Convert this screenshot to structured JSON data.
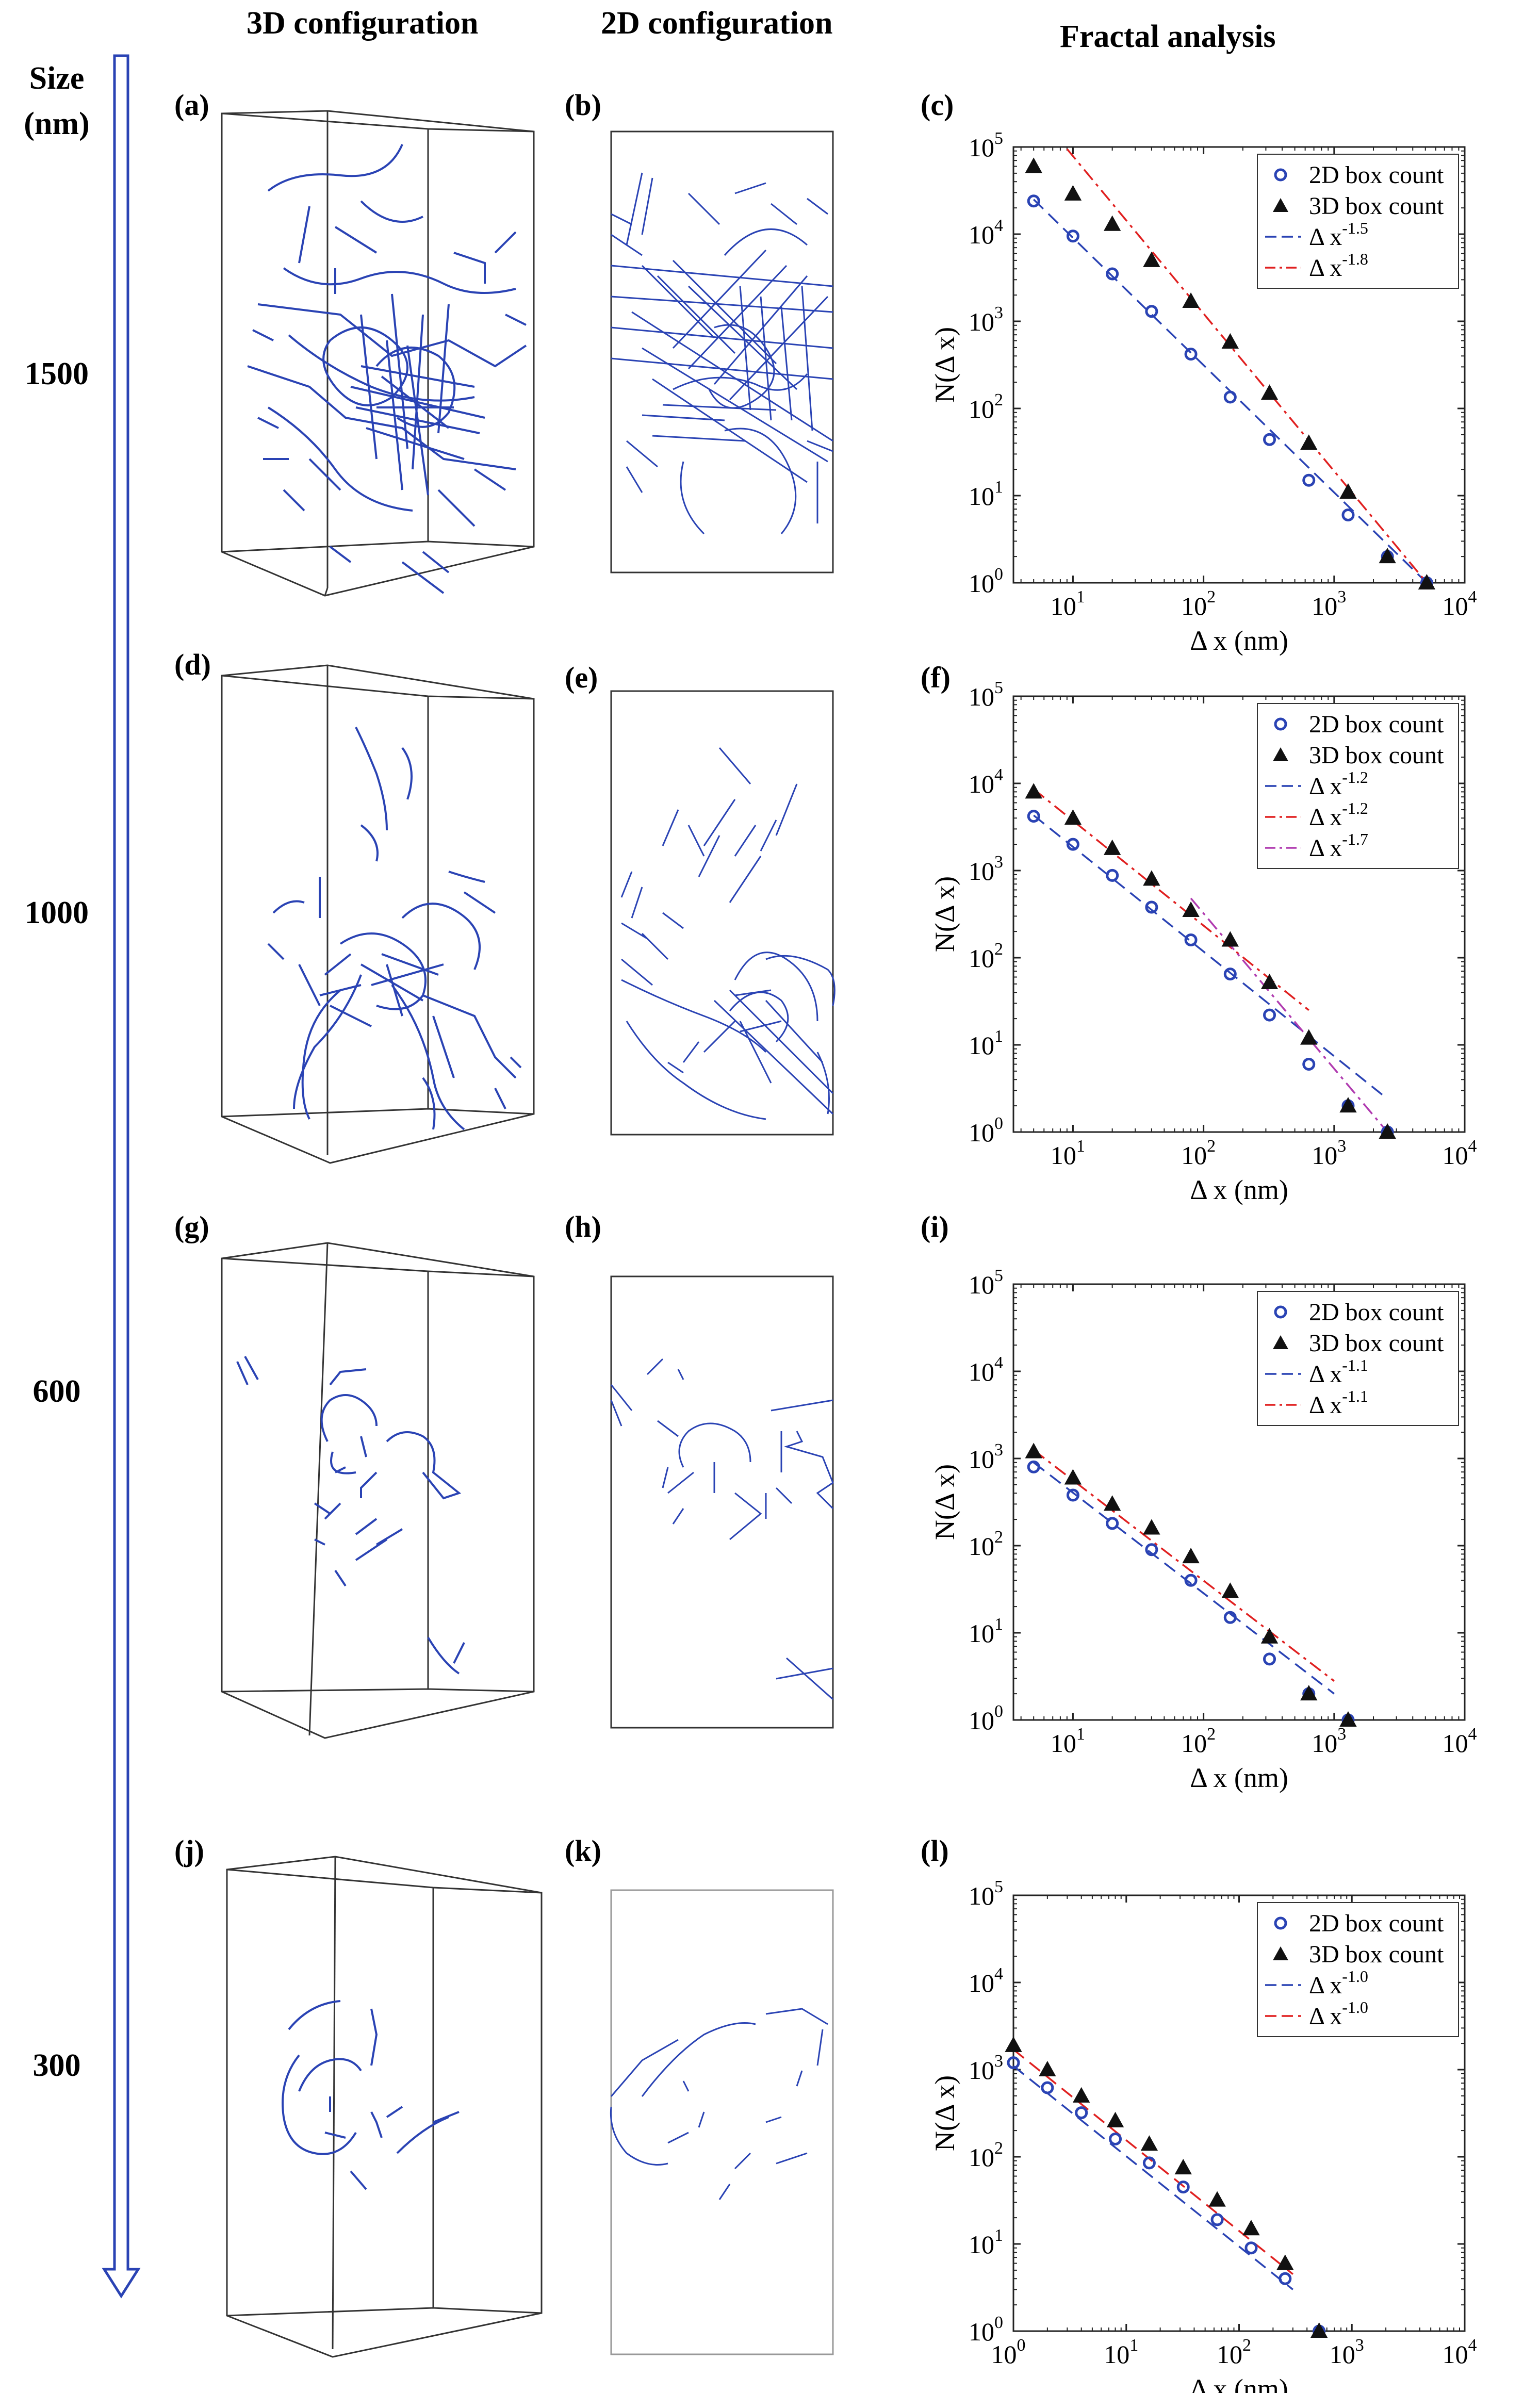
{
  "headers": {
    "size": "Size",
    "size_unit": "(nm)",
    "col3d": "3D configuration",
    "col2d": "2D configuration",
    "colfa": "Fractal analysis"
  },
  "colors": {
    "dislocation": "#2a43b4",
    "arrow": "#2a43b4",
    "fit3d": "#e02020",
    "fit3d_b": "#b03bb0",
    "marker2d": "#2a43b4"
  },
  "rows": [
    {
      "size": "1500",
      "label3d": "(a)",
      "label2d": "(b)",
      "labelfa": "(c)"
    },
    {
      "size": "1000",
      "label3d": "(d)",
      "label2d": "(e)",
      "labelfa": "(f)"
    },
    {
      "size": "600",
      "label3d": "(g)",
      "label2d": "(h)",
      "labelfa": "(i)"
    },
    {
      "size": "300",
      "label3d": "(j)",
      "label2d": "(k)",
      "labelfa": "(l)"
    }
  ],
  "chart_data": [
    {
      "type": "scatter",
      "xlabel": "Δ x (nm)",
      "ylabel": "N(Δ x)",
      "xscale": "log",
      "yscale": "log",
      "xlim": [
        3.5,
        10000
      ],
      "ylim": [
        1,
        100000
      ],
      "legend_placement": "top-right",
      "series": [
        {
          "name": "2D box count",
          "marker": "circle",
          "x": [
            5,
            10,
            20,
            40,
            80,
            160,
            320,
            640,
            1280,
            2560,
            5120
          ],
          "y": [
            24000,
            9500,
            3500,
            1300,
            420,
            135,
            44,
            15,
            6,
            2,
            1
          ]
        },
        {
          "name": "3D box count",
          "marker": "triangle",
          "x": [
            5,
            10,
            20,
            40,
            80,
            160,
            320,
            640,
            1280,
            2560,
            5120
          ],
          "y": [
            60000,
            29000,
            13000,
            5000,
            1700,
            580,
            150,
            40,
            11,
            2,
            1
          ]
        }
      ],
      "fits": [
        {
          "name": "Δ x",
          "exponent": "-1.5",
          "style": "dashed",
          "color": "#2a43b4",
          "x": [
            5,
            5120
          ],
          "y": [
            25000,
            1
          ]
        },
        {
          "name": "Δ x",
          "exponent": "-1.8",
          "style": "dashdot",
          "color": "#e02020",
          "x": [
            9,
            5120
          ],
          "y": [
            95000,
            1
          ]
        }
      ]
    },
    {
      "type": "scatter",
      "xlabel": "Δ x (nm)",
      "ylabel": "N(Δ x)",
      "xscale": "log",
      "yscale": "log",
      "xlim": [
        3.5,
        10000
      ],
      "ylim": [
        1,
        100000
      ],
      "legend_placement": "top-right",
      "series": [
        {
          "name": "2D box count",
          "marker": "circle",
          "x": [
            5,
            10,
            20,
            40,
            80,
            160,
            320,
            640,
            1280,
            2560
          ],
          "y": [
            4200,
            2000,
            880,
            380,
            160,
            65,
            22,
            6,
            2,
            1
          ]
        },
        {
          "name": "3D box count",
          "marker": "triangle",
          "x": [
            5,
            10,
            20,
            40,
            80,
            160,
            320,
            640,
            1280,
            2560
          ],
          "y": [
            8000,
            4000,
            1800,
            800,
            350,
            160,
            52,
            12,
            2,
            1
          ]
        }
      ],
      "fits": [
        {
          "name": "Δ x",
          "exponent": "-1.2",
          "style": "dashed",
          "color": "#2a43b4",
          "x": [
            5,
            2560
          ],
          "y": [
            4300,
            2.4
          ]
        },
        {
          "name": "Δ x",
          "exponent": "-1.2",
          "style": "dashdot",
          "color": "#e02020",
          "x": [
            5,
            640
          ],
          "y": [
            8600,
            25
          ]
        },
        {
          "name": "Δ x",
          "exponent": "-1.7",
          "style": "dashdot",
          "color": "#b03bb0",
          "x": [
            80,
            2560
          ],
          "y": [
            480,
            1
          ]
        }
      ]
    },
    {
      "type": "scatter",
      "xlabel": "Δ x (nm)",
      "ylabel": "N(Δ x)",
      "xscale": "log",
      "yscale": "log",
      "xlim": [
        3.5,
        10000
      ],
      "ylim": [
        1,
        100000
      ],
      "legend_placement": "top-right",
      "series": [
        {
          "name": "2D box count",
          "marker": "circle",
          "x": [
            5,
            10,
            20,
            40,
            80,
            160,
            320,
            640,
            1280
          ],
          "y": [
            800,
            380,
            180,
            90,
            40,
            15,
            5,
            2,
            1
          ]
        },
        {
          "name": "3D box count",
          "marker": "triangle",
          "x": [
            5,
            10,
            20,
            40,
            80,
            160,
            320,
            640,
            1280
          ],
          "y": [
            1200,
            600,
            300,
            160,
            75,
            30,
            9,
            2,
            1
          ]
        }
      ],
      "fits": [
        {
          "name": "Δ x",
          "exponent": "-1.1",
          "style": "dashed",
          "color": "#2a43b4",
          "x": [
            5,
            1000
          ],
          "y": [
            900,
            2
          ]
        },
        {
          "name": "Δ x",
          "exponent": "-1.1",
          "style": "dashdot",
          "color": "#e02020",
          "x": [
            5,
            1000
          ],
          "y": [
            1250,
            2.8
          ]
        }
      ]
    },
    {
      "type": "scatter",
      "xlabel": "Δ x (nm)",
      "ylabel": "N(Δ x)",
      "xscale": "log",
      "yscale": "log",
      "xlim": [
        1,
        10000
      ],
      "ylim": [
        1,
        100000
      ],
      "legend_placement": "top-right",
      "series": [
        {
          "name": "2D box count",
          "marker": "circle",
          "x": [
            1,
            2,
            4,
            8,
            16,
            32,
            64,
            128,
            256,
            512
          ],
          "y": [
            1200,
            620,
            320,
            160,
            85,
            45,
            19,
            9,
            4,
            1
          ]
        },
        {
          "name": "3D box count",
          "marker": "triangle",
          "x": [
            1,
            2,
            4,
            8,
            16,
            32,
            64,
            128,
            256,
            512
          ],
          "y": [
            1900,
            1000,
            500,
            260,
            140,
            75,
            32,
            15,
            6,
            1
          ]
        }
      ],
      "fits": [
        {
          "name": "Δ x",
          "exponent": "-1.0",
          "style": "dashed",
          "color": "#2a43b4",
          "x": [
            1,
            300
          ],
          "y": [
            1100,
            3
          ]
        },
        {
          "name": "Δ x",
          "exponent": "-1.0",
          "style": "dashed",
          "color": "#e02020",
          "x": [
            1,
            300
          ],
          "y": [
            1700,
            4.5
          ]
        }
      ]
    }
  ]
}
